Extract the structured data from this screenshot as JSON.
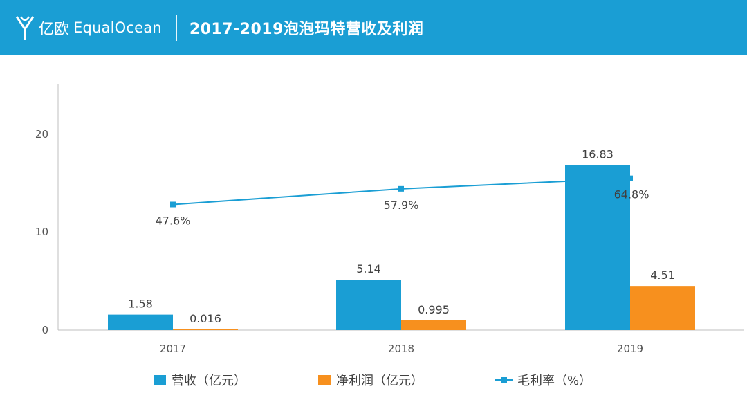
{
  "header": {
    "logo_cn": "亿欧",
    "logo_en": "EqualOcean",
    "title": "2017-2019泡泡玛特营收及利润"
  },
  "colors": {
    "header_bg": "#1a9ed4",
    "revenue": "#1a9ed4",
    "profit": "#f7901e",
    "margin": "#1a9ed4"
  },
  "chart_data": {
    "type": "bar",
    "categories": [
      "2017",
      "2018",
      "2019"
    ],
    "series": [
      {
        "name": "营收（亿元）",
        "kind": "bar",
        "values": [
          1.58,
          5.14,
          16.83
        ],
        "labels": [
          "1.58",
          "5.14",
          "16.83"
        ]
      },
      {
        "name": "净利润（亿元）",
        "kind": "bar",
        "values": [
          0.016,
          0.995,
          4.51
        ],
        "labels": [
          "0.016",
          "0.995",
          "4.51"
        ]
      },
      {
        "name": "毛利率（%）",
        "kind": "line",
        "values": [
          47.6,
          57.9,
          64.8
        ],
        "labels": [
          "47.6%",
          "57.9%",
          "64.8%"
        ]
      }
    ],
    "yticks": [
      "0",
      "10",
      "20"
    ],
    "ylim": [
      0,
      25
    ],
    "title": "2017-2019泡泡玛特营收及利润",
    "legend_position": "bottom"
  }
}
